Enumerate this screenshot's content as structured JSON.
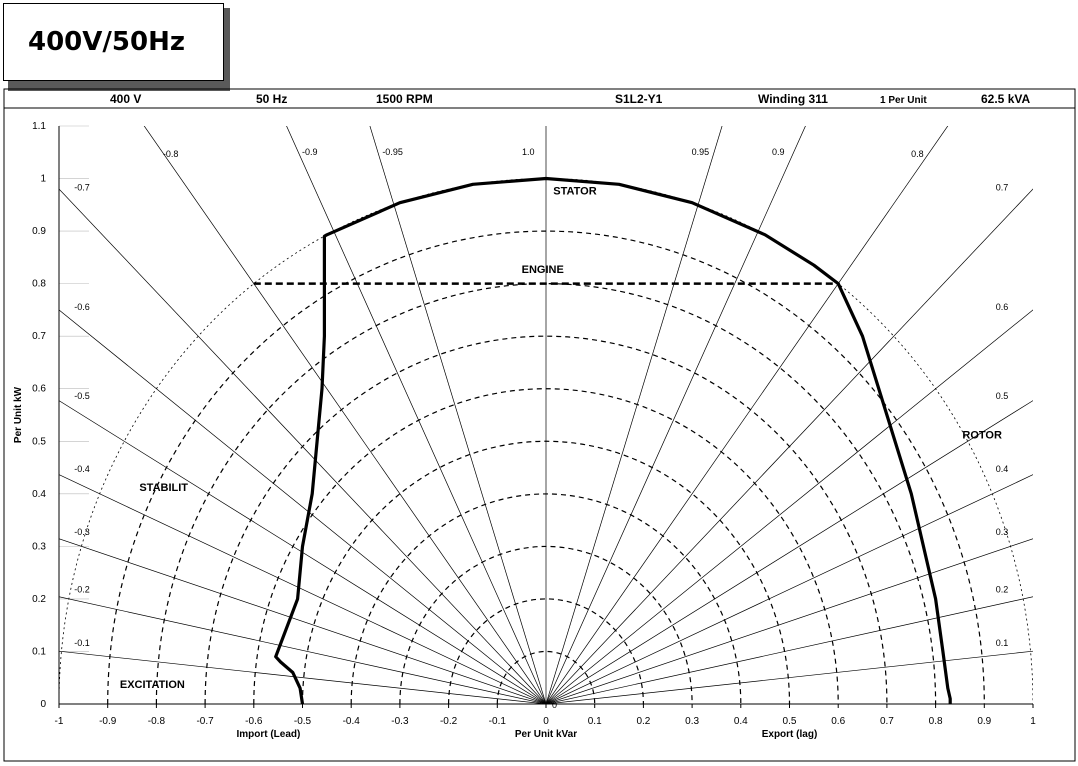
{
  "badge": {
    "label": "400V/50Hz"
  },
  "header": {
    "voltage": "400 V",
    "frequency": "50 Hz",
    "speed": "1500 RPM",
    "alternator": "S1L2-Y1",
    "winding": "Winding 311",
    "per_unit_label": "1 Per Unit",
    "rating": "62.5 kVA"
  },
  "chart_data": {
    "type": "line",
    "title": "",
    "xlabel": "Per Unit kVar",
    "ylabel": "Per Unit kW",
    "xlabel_left": "Import (Lead)",
    "xlabel_right": "Export (lag)",
    "xlim": [
      -1,
      1
    ],
    "ylim": [
      0,
      1.1
    ],
    "x_ticks": [
      "-1",
      "-0.9",
      "-0.8",
      "-0.7",
      "-0.6",
      "-0.5",
      "-0.4",
      "-0.3",
      "-0.2",
      "-0.1",
      "0",
      "0.1",
      "0.2",
      "0.3",
      "0.4",
      "0.5",
      "0.6",
      "0.7",
      "0.8",
      "0.9",
      "1"
    ],
    "y_ticks": [
      "0",
      "0.1",
      "0.2",
      "0.3",
      "0.4",
      "0.5",
      "0.6",
      "0.7",
      "0.8",
      "0.9",
      "1",
      "1.1"
    ],
    "concentric_circles": [
      0.1,
      0.2,
      0.3,
      0.4,
      0.5,
      0.6,
      0.7,
      0.8,
      0.9
    ],
    "power_factor_lines": [
      {
        "pf": 1.0,
        "label": "1.0"
      },
      {
        "pf": 0.95,
        "label": "0.95"
      },
      {
        "pf": 0.9,
        "label": "0.9"
      },
      {
        "pf": 0.8,
        "label": "0.8"
      },
      {
        "pf": 0.7,
        "label": "0.7"
      },
      {
        "pf": 0.6,
        "label": "0.6"
      },
      {
        "pf": 0.5,
        "label": "0.5"
      },
      {
        "pf": 0.4,
        "label": "0.4"
      },
      {
        "pf": 0.3,
        "label": "0.3"
      },
      {
        "pf": 0.2,
        "label": "0.2"
      },
      {
        "pf": 0.1,
        "label": "0.1"
      },
      {
        "pf": -0.95,
        "label": "-0.95"
      },
      {
        "pf": -0.9,
        "label": "-0.9"
      },
      {
        "pf": -0.8,
        "label": "-0.8"
      },
      {
        "pf": -0.7,
        "label": "-0.7"
      },
      {
        "pf": -0.6,
        "label": "-0.6"
      },
      {
        "pf": -0.5,
        "label": "-0.5"
      },
      {
        "pf": -0.4,
        "label": "-0.4"
      },
      {
        "pf": -0.3,
        "label": "-0.3"
      },
      {
        "pf": -0.2,
        "label": "-0.2"
      },
      {
        "pf": -0.1,
        "label": "-0.1"
      }
    ],
    "limit_labels": {
      "stator": "STATOR",
      "engine": "ENGINE",
      "rotor": "ROTOR",
      "stability": "STABILIT",
      "excitation": "EXCITATION",
      "origin": "0"
    },
    "engine_limit": {
      "x": [
        -0.6,
        0.6
      ],
      "y": 0.8
    },
    "operating_boundary": {
      "x": [
        -0.5,
        -0.505,
        -0.52,
        -0.545,
        -0.555,
        -0.51,
        -0.5,
        -0.48,
        -0.47,
        -0.46,
        -0.455,
        -0.455,
        -0.45,
        -0.3,
        -0.15,
        0,
        0.15,
        0.3,
        0.45,
        0.55,
        0.6,
        0.65,
        0.7,
        0.75,
        0.8,
        0.815,
        0.825,
        0.83,
        0.83
      ],
      "y": [
        0,
        0.03,
        0.06,
        0.08,
        0.09,
        0.2,
        0.3,
        0.4,
        0.5,
        0.6,
        0.7,
        0.89,
        0.893,
        0.954,
        0.989,
        1.0,
        0.989,
        0.954,
        0.893,
        0.835,
        0.8,
        0.7,
        0.55,
        0.4,
        0.2,
        0.1,
        0.03,
        0.01,
        0
      ]
    }
  }
}
